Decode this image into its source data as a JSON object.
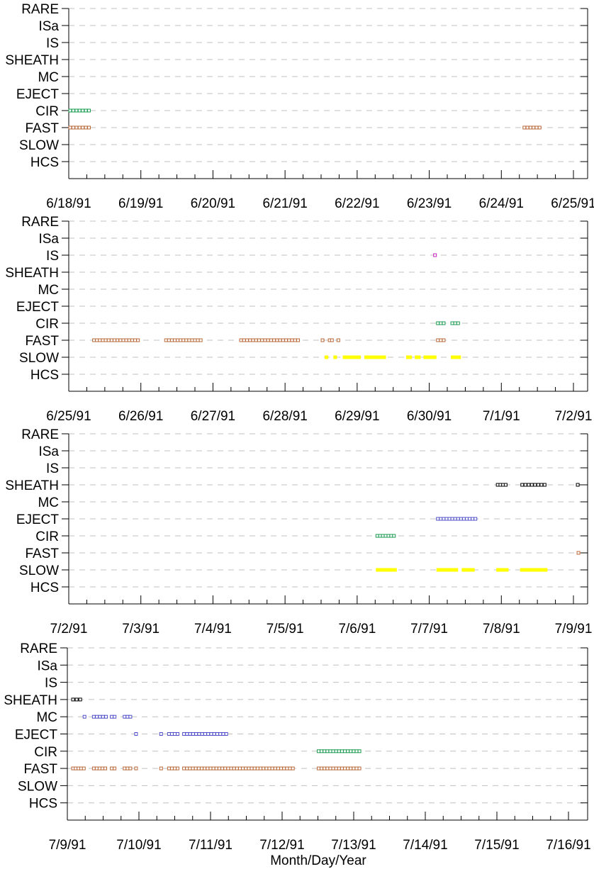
{
  "chart_data": {
    "type": "scatter",
    "xlabel": "Month/Day/Year",
    "colors": {
      "FAST": "#b8683a",
      "CIR": "#1a9a50",
      "SLOW": "#ffff00",
      "IS": "#c020c0",
      "EJECT": "#5050c8",
      "MC": "#5050c8",
      "SHEATH": "#000000",
      "grid": "#c0c0c0"
    },
    "panels": [
      {
        "categories": [
          "RARE",
          "ISa",
          "IS",
          "SHEATH",
          "MC",
          "EJECT",
          "CIR",
          "FAST",
          "SLOW",
          "HCS"
        ],
        "ticks": [
          "6/18/91",
          "6/19/91",
          "6/20/91",
          "6/21/91",
          "6/22/91",
          "6/23/91",
          "6/24/91",
          "6/25/91"
        ],
        "intervals": [
          {
            "category": "CIR",
            "start": 0.0,
            "end": 0.3
          },
          {
            "category": "FAST",
            "start": 0.0,
            "end": 0.3
          },
          {
            "category": "FAST",
            "start": 6.3,
            "end": 6.55
          }
        ]
      },
      {
        "categories": [
          "RARE",
          "ISa",
          "IS",
          "SHEATH",
          "MC",
          "EJECT",
          "CIR",
          "FAST",
          "SLOW",
          "HCS"
        ],
        "ticks": [
          "6/25/91",
          "6/26/91",
          "6/27/91",
          "6/28/91",
          "6/29/91",
          "6/30/91",
          "7/1/91",
          "7/2/91"
        ],
        "intervals": [
          {
            "category": "IS",
            "start": 5.06,
            "end": 5.1
          },
          {
            "category": "CIR",
            "start": 5.1,
            "end": 5.22
          },
          {
            "category": "CIR",
            "start": 5.3,
            "end": 5.42
          },
          {
            "category": "FAST",
            "start": 0.33,
            "end": 0.98
          },
          {
            "category": "FAST",
            "start": 1.33,
            "end": 1.85
          },
          {
            "category": "FAST",
            "start": 2.37,
            "end": 3.2
          },
          {
            "category": "FAST",
            "start": 3.5,
            "end": 3.55
          },
          {
            "category": "FAST",
            "start": 3.6,
            "end": 3.67
          },
          {
            "category": "FAST",
            "start": 3.72,
            "end": 3.76
          },
          {
            "category": "FAST",
            "start": 5.1,
            "end": 5.22
          },
          {
            "category": "SLOW",
            "start": 3.55,
            "end": 3.6,
            "solid": true
          },
          {
            "category": "SLOW",
            "start": 3.67,
            "end": 3.72,
            "solid": true
          },
          {
            "category": "SLOW",
            "start": 3.8,
            "end": 4.05,
            "solid": true
          },
          {
            "category": "SLOW",
            "start": 4.1,
            "end": 4.4,
            "solid": true
          },
          {
            "category": "SLOW",
            "start": 4.68,
            "end": 4.76,
            "solid": true
          },
          {
            "category": "SLOW",
            "start": 4.8,
            "end": 4.88,
            "solid": true
          },
          {
            "category": "SLOW",
            "start": 4.92,
            "end": 5.1,
            "solid": true
          },
          {
            "category": "SLOW",
            "start": 5.3,
            "end": 5.44,
            "solid": true
          }
        ]
      },
      {
        "categories": [
          "RARE",
          "ISa",
          "IS",
          "SHEATH",
          "MC",
          "EJECT",
          "CIR",
          "FAST",
          "SLOW",
          "HCS"
        ],
        "ticks": [
          "7/2/91",
          "7/3/91",
          "7/4/91",
          "7/5/91",
          "7/6/91",
          "7/7/91",
          "7/8/91",
          "7/9/91"
        ],
        "intervals": [
          {
            "category": "SHEATH",
            "start": 5.93,
            "end": 6.08
          },
          {
            "category": "SHEATH",
            "start": 6.27,
            "end": 6.62
          },
          {
            "category": "SHEATH",
            "start": 7.04,
            "end": 7.1
          },
          {
            "category": "EJECT",
            "start": 5.1,
            "end": 5.66
          },
          {
            "category": "CIR",
            "start": 4.26,
            "end": 4.53
          },
          {
            "category": "FAST",
            "start": 7.05,
            "end": 7.1
          },
          {
            "category": "SLOW",
            "start": 4.26,
            "end": 4.55,
            "solid": true
          },
          {
            "category": "SLOW",
            "start": 5.1,
            "end": 5.4,
            "solid": true
          },
          {
            "category": "SLOW",
            "start": 5.45,
            "end": 5.63,
            "solid": true
          },
          {
            "category": "SLOW",
            "start": 5.93,
            "end": 6.1,
            "solid": true
          },
          {
            "category": "SLOW",
            "start": 6.26,
            "end": 6.64,
            "solid": true
          }
        ]
      },
      {
        "categories": [
          "RARE",
          "ISa",
          "IS",
          "SHEATH",
          "MC",
          "EJECT",
          "CIR",
          "FAST",
          "SLOW",
          "HCS"
        ],
        "ticks": [
          "7/9/91",
          "7/10/91",
          "7/11/91",
          "7/12/91",
          "7/13/91",
          "7/14/91",
          "7/15/91",
          "7/16/91"
        ],
        "intervals": [
          {
            "category": "SHEATH",
            "start": 0.06,
            "end": 0.2
          },
          {
            "category": "MC",
            "start": 0.22,
            "end": 0.26
          },
          {
            "category": "MC",
            "start": 0.35,
            "end": 0.56
          },
          {
            "category": "MC",
            "start": 0.6,
            "end": 0.68
          },
          {
            "category": "MC",
            "start": 0.78,
            "end": 0.9
          },
          {
            "category": "EJECT",
            "start": 0.94,
            "end": 0.98
          },
          {
            "category": "EJECT",
            "start": 1.29,
            "end": 1.33
          },
          {
            "category": "EJECT",
            "start": 1.4,
            "end": 1.56
          },
          {
            "category": "EJECT",
            "start": 1.61,
            "end": 2.24
          },
          {
            "category": "CIR",
            "start": 3.49,
            "end": 4.1
          },
          {
            "category": "FAST",
            "start": 0.06,
            "end": 0.25
          },
          {
            "category": "FAST",
            "start": 0.35,
            "end": 0.55
          },
          {
            "category": "FAST",
            "start": 0.6,
            "end": 0.68
          },
          {
            "category": "FAST",
            "start": 0.78,
            "end": 0.9
          },
          {
            "category": "FAST",
            "start": 0.94,
            "end": 0.98
          },
          {
            "category": "FAST",
            "start": 1.29,
            "end": 1.33
          },
          {
            "category": "FAST",
            "start": 1.4,
            "end": 1.56
          },
          {
            "category": "FAST",
            "start": 1.61,
            "end": 3.17
          },
          {
            "category": "FAST",
            "start": 3.49,
            "end": 4.1
          }
        ]
      }
    ]
  }
}
